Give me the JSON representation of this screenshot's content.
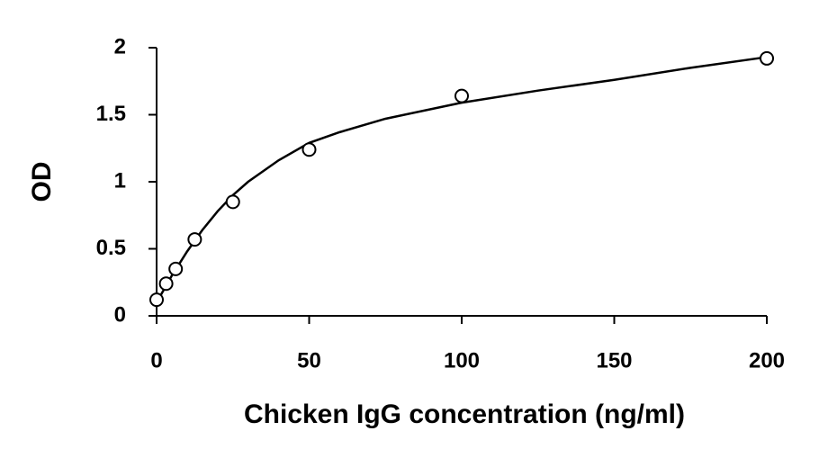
{
  "chart_data": {
    "type": "scatter",
    "xlabel": "Chicken IgG concentration (ng/ml)",
    "ylabel": "OD",
    "x": [
      0,
      3.125,
      6.25,
      12.5,
      25,
      50,
      100,
      200
    ],
    "values": [
      0.12,
      0.24,
      0.35,
      0.57,
      0.85,
      1.24,
      1.64,
      1.92
    ],
    "color": "#000000",
    "curve": {
      "x": [
        0,
        5,
        10,
        15,
        20,
        25,
        30,
        40,
        50,
        60,
        75,
        100,
        125,
        150,
        175,
        200
      ],
      "values": [
        0.1,
        0.3,
        0.48,
        0.64,
        0.78,
        0.9,
        1.0,
        1.16,
        1.29,
        1.37,
        1.47,
        1.59,
        1.68,
        1.76,
        1.85,
        1.93
      ]
    },
    "xlim": [
      0,
      200
    ],
    "xticks": [
      0,
      50,
      100,
      150,
      200
    ],
    "ylim": [
      0,
      2
    ],
    "yticks": [
      0,
      0.5,
      1,
      1.5,
      2
    ],
    "grid": false
  }
}
